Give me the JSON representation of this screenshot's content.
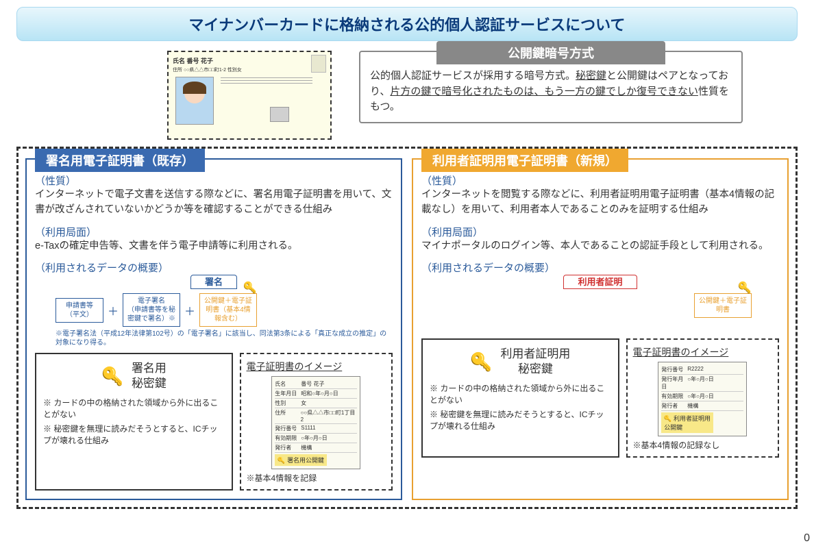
{
  "title": "マイナンバーカードに格納される公的個人認証サービスについて",
  "crypto": {
    "header": "公開鍵暗号方式",
    "body_pre": "公的個人認証サービスが採用する暗号方式。",
    "body_u1": "秘密鍵",
    "body_mid": "と公開鍵はペアとなっており、",
    "body_u2": "片方の鍵で暗号化されたものは、もう一方の鍵でしか復号できない",
    "body_post": "性質をもつ。"
  },
  "left": {
    "header": "署名用電子証明書（既存）",
    "nature_label": "（性質）",
    "nature": "インターネットで電子文書を送信する際などに、署名用電子証明書を用いて、文書が改ざんされていないかどうか等を確認することができる仕組み",
    "use_label": "（利用局面）",
    "use": "e-Taxの確定申告等、文書を伴う電子申請等に利用される。",
    "data_label": "（利用されるデータの概要）",
    "tab": "署名",
    "box1_l1": "申請書等",
    "box1_l2": "（平文）",
    "box2_l1": "電子署名",
    "box2_l2": "（申請書等を秘",
    "box2_l3": "密鍵で署名）※",
    "box3_l1": "公開鍵＋電子証",
    "box3_l2": "明書（基本4情",
    "box3_l3": "報含む）",
    "footnote": "※電子署名法（平成12年法律第102号）の「電子署名」に該当し、同法第3条による「真正な成立の推定」の対象になり得る。",
    "key_title_l1": "署名用",
    "key_title_l2": "秘密鍵",
    "key_note1": "※ カードの中の格納された領域から外に出ることがない",
    "key_note2": "※ 秘密鍵を無理に読みだそうとすると、ICチップが壊れる仕組み",
    "cert_img_title": "電子証明書のイメージ",
    "cert_rows": [
      [
        "氏名",
        "番号 花子"
      ],
      [
        "生年月日",
        "昭和○年○月○日"
      ],
      [
        "性別",
        "女"
      ],
      [
        "住所",
        "○○県△△市□□町1丁目2"
      ],
      [
        "発行番号",
        "S1111"
      ],
      [
        "有効期限",
        "○年○月○日"
      ],
      [
        "発行者",
        "機構"
      ]
    ],
    "cert_badge": "署名用公開鍵",
    "cert_footnote": "※基本4情報を記録"
  },
  "right": {
    "header": "利用者証明用電子証明書（新規）",
    "nature_label": "（性質）",
    "nature": "インターネットを閲覧する際などに、利用者証明用電子証明書（基本4情報の記載なし）を用いて、利用者本人であることのみを証明する仕組み",
    "use_label": "（利用局面）",
    "use": "マイナポータルのログイン等、本人であることの認証手段として利用される。",
    "data_label": "（利用されるデータの概要）",
    "tab": "利用者証明",
    "box3_l1": "公開鍵＋電子証",
    "box3_l2": "明書",
    "key_title_l1": "利用者証明用",
    "key_title_l2": "秘密鍵",
    "key_note1": "※ カードの中の格納された領域から外に出ることがない",
    "key_note2": "※ 秘密鍵を無理に読みだそうとすると、ICチップが壊れる仕組み",
    "cert_img_title": "電子証明書のイメージ",
    "cert_rows": [
      [
        "発行番号",
        "R2222"
      ],
      [
        "発行年月日",
        "○年○月○日"
      ],
      [
        "有効期限",
        "○年○月○日"
      ],
      [
        "発行者",
        "機構"
      ]
    ],
    "cert_badge_l1": "利用者証明用",
    "cert_badge_l2": "公開鍵",
    "cert_footnote": "※基本4情報の記録なし"
  },
  "colors": {
    "blue": "#2a5a9a",
    "orange": "#e8a030",
    "red": "#d03030",
    "gray": "#888888"
  },
  "page_number": "0"
}
